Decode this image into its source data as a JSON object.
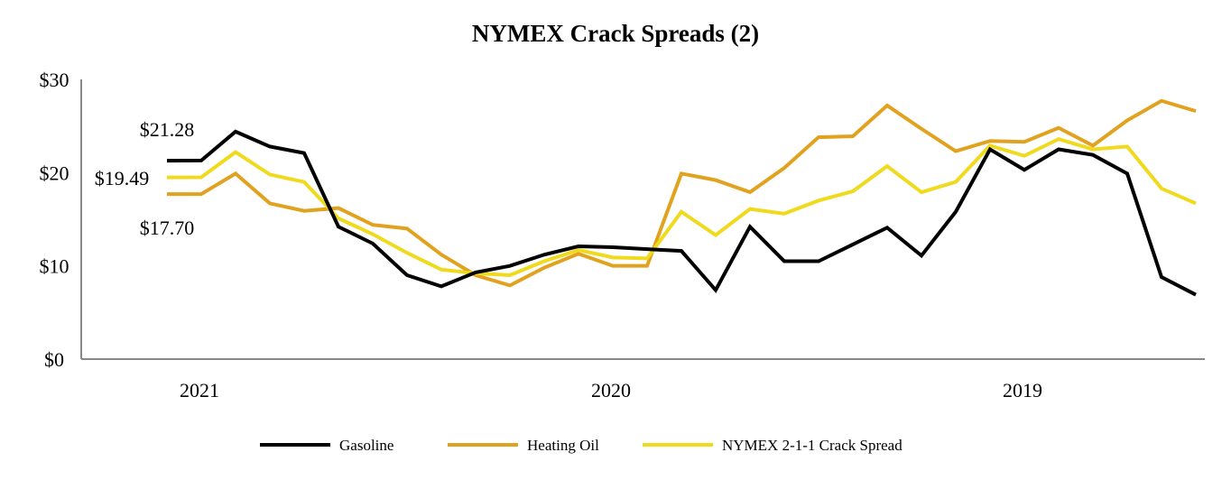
{
  "chart_data": {
    "type": "line",
    "title": "NYMEX Crack Spreads (2)",
    "xlabel": "",
    "ylabel": "",
    "ylim": [
      0,
      30
    ],
    "y_ticks": [
      {
        "value": 0,
        "label": "$0"
      },
      {
        "value": 10,
        "label": "$10"
      },
      {
        "value": 20,
        "label": "$20"
      },
      {
        "value": 30,
        "label": "$30"
      }
    ],
    "x_ticks": [
      {
        "index": 1,
        "label": "2021"
      },
      {
        "index": 13,
        "label": "2020"
      },
      {
        "index": 25,
        "label": "2019"
      }
    ],
    "grid": false,
    "legend_placement": "bottom",
    "series": [
      {
        "name": "Gasoline",
        "color": "#000000",
        "values": [
          21.28,
          21.3,
          24.4,
          22.8,
          22.1,
          14.2,
          12.4,
          9.0,
          7.8,
          9.3,
          10.0,
          11.2,
          12.1,
          12.0,
          11.8,
          11.6,
          7.4,
          14.2,
          10.5,
          10.5,
          12.3,
          14.1,
          11.1,
          15.8,
          22.5,
          20.3,
          22.5,
          21.9,
          19.9,
          8.8,
          6.9
        ]
      },
      {
        "name": "Heating Oil",
        "color": "#E0A21F",
        "values": [
          17.7,
          17.7,
          19.9,
          16.7,
          15.9,
          16.2,
          14.4,
          14.0,
          11.2,
          9.0,
          7.9,
          9.8,
          11.3,
          10.0,
          10.0,
          19.9,
          19.2,
          17.9,
          20.5,
          23.8,
          23.9,
          27.2,
          24.7,
          22.3,
          23.4,
          23.3,
          24.8,
          22.9,
          25.6,
          27.7,
          26.6
        ]
      },
      {
        "name": "NYMEX 2-1-1 Crack Spread",
        "color": "#EFDA1E",
        "values": [
          19.49,
          19.5,
          22.2,
          19.8,
          19.0,
          15.1,
          13.4,
          11.4,
          9.6,
          9.2,
          9.0,
          10.5,
          11.7,
          10.9,
          10.8,
          15.8,
          13.3,
          16.1,
          15.6,
          17.0,
          18.0,
          20.7,
          17.9,
          19.0,
          22.9,
          21.8,
          23.6,
          22.5,
          22.8,
          18.3,
          16.7
        ]
      }
    ],
    "annotations": [
      {
        "series": "Gasoline",
        "index": 0,
        "label": "$21.28"
      },
      {
        "series": "NYMEX 2-1-1 Crack Spread",
        "index": 0,
        "label": "$19.49"
      },
      {
        "series": "Heating Oil",
        "index": 0,
        "label": "$17.70"
      }
    ]
  }
}
